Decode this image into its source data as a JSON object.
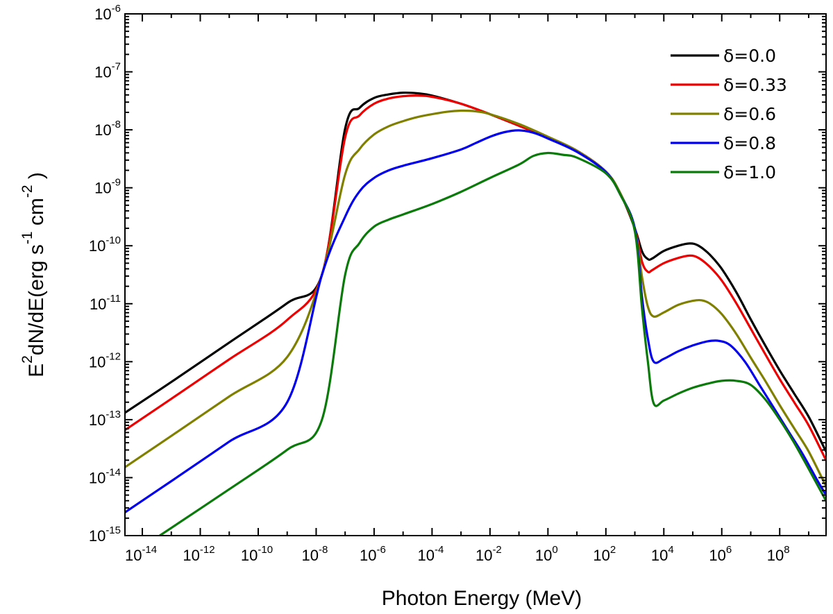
{
  "chart_data": {
    "type": "line",
    "title": "",
    "xlabel": "Photon Energy (MeV)",
    "ylabel": {
      "base_E": "E",
      "sup_2": "2",
      "main": "dN/dE(erg s",
      "sup_m1": "-1",
      "mid": "cm",
      "sup_m2": "-2",
      "close": ")"
    },
    "x_scale": "log10",
    "y_scale": "log10",
    "xlim_exponent": [
      -14.6,
      9.6
    ],
    "ylim_exponent": [
      -15,
      -6
    ],
    "xticks_exponent": [
      -14,
      -12,
      -10,
      -8,
      -6,
      -4,
      -2,
      0,
      2,
      4,
      6,
      8
    ],
    "yticks_exponent": [
      -15,
      -14,
      -13,
      -12,
      -11,
      -10,
      -9,
      -8,
      -7,
      -6
    ],
    "tick_base": "10",
    "legend_position": "top-right",
    "series": [
      {
        "name": "δ=0.0",
        "color": "#000000",
        "points": [
          [
            -14.6,
            -12.88
          ],
          [
            -13,
            -12.35
          ],
          [
            -11,
            -11.67
          ],
          [
            -9,
            -10.99
          ],
          [
            -7.8,
            -10.5
          ],
          [
            -7,
            -7.98
          ],
          [
            -6.5,
            -7.62
          ],
          [
            -6,
            -7.45
          ],
          [
            -5.5,
            -7.39
          ],
          [
            -5,
            -7.36
          ],
          [
            -4.5,
            -7.37
          ],
          [
            -4,
            -7.41
          ],
          [
            -3,
            -7.55
          ],
          [
            -2,
            -7.73
          ],
          [
            -1,
            -7.93
          ],
          [
            0,
            -8.13
          ],
          [
            1,
            -8.36
          ],
          [
            2,
            -8.72
          ],
          [
            2.5,
            -9.1
          ],
          [
            3,
            -9.7
          ],
          [
            3.25,
            -10.1
          ],
          [
            3.45,
            -10.23
          ],
          [
            3.6,
            -10.22
          ],
          [
            4,
            -10.09
          ],
          [
            4.5,
            -10.0
          ],
          [
            4.9,
            -9.96
          ],
          [
            5.2,
            -10.0
          ],
          [
            5.6,
            -10.16
          ],
          [
            6,
            -10.4
          ],
          [
            6.5,
            -10.8
          ],
          [
            7,
            -11.27
          ],
          [
            7.5,
            -11.72
          ],
          [
            8,
            -12.15
          ],
          [
            8.5,
            -12.55
          ],
          [
            9,
            -12.95
          ],
          [
            9.6,
            -13.55
          ]
        ]
      },
      {
        "name": "δ=0.33",
        "color": "#ee0000",
        "points": [
          [
            -14.6,
            -13.18
          ],
          [
            -13,
            -12.64
          ],
          [
            -11,
            -11.96
          ],
          [
            -9,
            -11.28
          ],
          [
            -7.8,
            -10.5
          ],
          [
            -7,
            -8.13
          ],
          [
            -6.5,
            -7.75
          ],
          [
            -6,
            -7.55
          ],
          [
            -5.5,
            -7.46
          ],
          [
            -5,
            -7.42
          ],
          [
            -4.5,
            -7.41
          ],
          [
            -4,
            -7.43
          ],
          [
            -3,
            -7.55
          ],
          [
            -2,
            -7.73
          ],
          [
            -1,
            -7.93
          ],
          [
            0,
            -8.13
          ],
          [
            1,
            -8.36
          ],
          [
            2,
            -8.72
          ],
          [
            2.5,
            -9.1
          ],
          [
            3,
            -9.7
          ],
          [
            3.25,
            -10.28
          ],
          [
            3.45,
            -10.45
          ],
          [
            3.6,
            -10.42
          ],
          [
            4,
            -10.3
          ],
          [
            4.5,
            -10.21
          ],
          [
            4.9,
            -10.17
          ],
          [
            5.2,
            -10.21
          ],
          [
            5.6,
            -10.37
          ],
          [
            6,
            -10.6
          ],
          [
            6.5,
            -10.99
          ],
          [
            7,
            -11.43
          ],
          [
            7.5,
            -11.87
          ],
          [
            8,
            -12.3
          ],
          [
            8.5,
            -12.7
          ],
          [
            9,
            -13.1
          ],
          [
            9.6,
            -13.7
          ]
        ]
      },
      {
        "name": "δ=0.6",
        "color": "#808000",
        "points": [
          [
            -14.6,
            -13.82
          ],
          [
            -13,
            -13.28
          ],
          [
            -11,
            -12.6
          ],
          [
            -9,
            -11.92
          ],
          [
            -7.8,
            -10.5
          ],
          [
            -7,
            -8.77
          ],
          [
            -6.5,
            -8.33
          ],
          [
            -6,
            -8.08
          ],
          [
            -5.5,
            -7.94
          ],
          [
            -5,
            -7.85
          ],
          [
            -4.5,
            -7.78
          ],
          [
            -4,
            -7.73
          ],
          [
            -3.5,
            -7.69
          ],
          [
            -3,
            -7.67
          ],
          [
            -2.5,
            -7.68
          ],
          [
            -2,
            -7.73
          ],
          [
            -1,
            -7.9
          ],
          [
            0,
            -8.12
          ],
          [
            1,
            -8.36
          ],
          [
            2,
            -8.72
          ],
          [
            2.5,
            -9.1
          ],
          [
            3,
            -9.7
          ],
          [
            3.25,
            -10.55
          ],
          [
            3.45,
            -11.05
          ],
          [
            3.65,
            -11.22
          ],
          [
            4,
            -11.15
          ],
          [
            4.5,
            -11.02
          ],
          [
            5,
            -10.95
          ],
          [
            5.3,
            -10.94
          ],
          [
            5.6,
            -11.0
          ],
          [
            6,
            -11.18
          ],
          [
            6.5,
            -11.52
          ],
          [
            7,
            -11.93
          ],
          [
            7.5,
            -12.33
          ],
          [
            8,
            -12.75
          ],
          [
            8.5,
            -13.15
          ],
          [
            9,
            -13.55
          ],
          [
            9.6,
            -14.15
          ]
        ]
      },
      {
        "name": "δ=0.8",
        "color": "#0000ee",
        "points": [
          [
            -14.6,
            -14.6
          ],
          [
            -13,
            -14.06
          ],
          [
            -11,
            -13.38
          ],
          [
            -9,
            -12.7
          ],
          [
            -7.8,
            -10.5
          ],
          [
            -7,
            -9.5
          ],
          [
            -6.5,
            -9.06
          ],
          [
            -6,
            -8.83
          ],
          [
            -5.5,
            -8.7
          ],
          [
            -5,
            -8.62
          ],
          [
            -4,
            -8.49
          ],
          [
            -3,
            -8.34
          ],
          [
            -2.5,
            -8.23
          ],
          [
            -2,
            -8.12
          ],
          [
            -1.5,
            -8.04
          ],
          [
            -1,
            -8.01
          ],
          [
            -0.5,
            -8.05
          ],
          [
            0,
            -8.15
          ],
          [
            1,
            -8.38
          ],
          [
            2,
            -8.73
          ],
          [
            2.5,
            -9.12
          ],
          [
            3,
            -9.7
          ],
          [
            3.25,
            -10.9
          ],
          [
            3.45,
            -11.6
          ],
          [
            3.65,
            -12.0
          ],
          [
            4,
            -11.95
          ],
          [
            4.5,
            -11.82
          ],
          [
            5,
            -11.72
          ],
          [
            5.5,
            -11.65
          ],
          [
            5.9,
            -11.64
          ],
          [
            6.3,
            -11.72
          ],
          [
            6.8,
            -12.0
          ],
          [
            7.3,
            -12.4
          ],
          [
            7.8,
            -12.8
          ],
          [
            8.3,
            -13.2
          ],
          [
            8.8,
            -13.6
          ],
          [
            9.3,
            -14.05
          ],
          [
            9.6,
            -14.3
          ]
        ]
      },
      {
        "name": "δ=1.0",
        "color": "#0a7a0a",
        "points": [
          [
            -13.4,
            -15.0
          ],
          [
            -11,
            -14.2
          ],
          [
            -9,
            -13.52
          ],
          [
            -7.8,
            -13.0
          ],
          [
            -7,
            -10.5
          ],
          [
            -6.5,
            -9.95
          ],
          [
            -6,
            -9.67
          ],
          [
            -5.5,
            -9.55
          ],
          [
            -5,
            -9.46
          ],
          [
            -4,
            -9.28
          ],
          [
            -3,
            -9.07
          ],
          [
            -2,
            -8.83
          ],
          [
            -1,
            -8.6
          ],
          [
            -0.5,
            -8.45
          ],
          [
            0,
            -8.4
          ],
          [
            0.5,
            -8.43
          ],
          [
            1,
            -8.48
          ],
          [
            2,
            -8.75
          ],
          [
            2.5,
            -9.12
          ],
          [
            3,
            -9.75
          ],
          [
            3.25,
            -11.1
          ],
          [
            3.45,
            -12.0
          ],
          [
            3.65,
            -12.72
          ],
          [
            4,
            -12.67
          ],
          [
            4.5,
            -12.55
          ],
          [
            5,
            -12.45
          ],
          [
            5.5,
            -12.38
          ],
          [
            6,
            -12.33
          ],
          [
            6.5,
            -12.33
          ],
          [
            7,
            -12.4
          ],
          [
            7.5,
            -12.65
          ],
          [
            8,
            -13.0
          ],
          [
            8.5,
            -13.4
          ],
          [
            9,
            -13.85
          ],
          [
            9.6,
            -14.4
          ]
        ]
      }
    ]
  }
}
